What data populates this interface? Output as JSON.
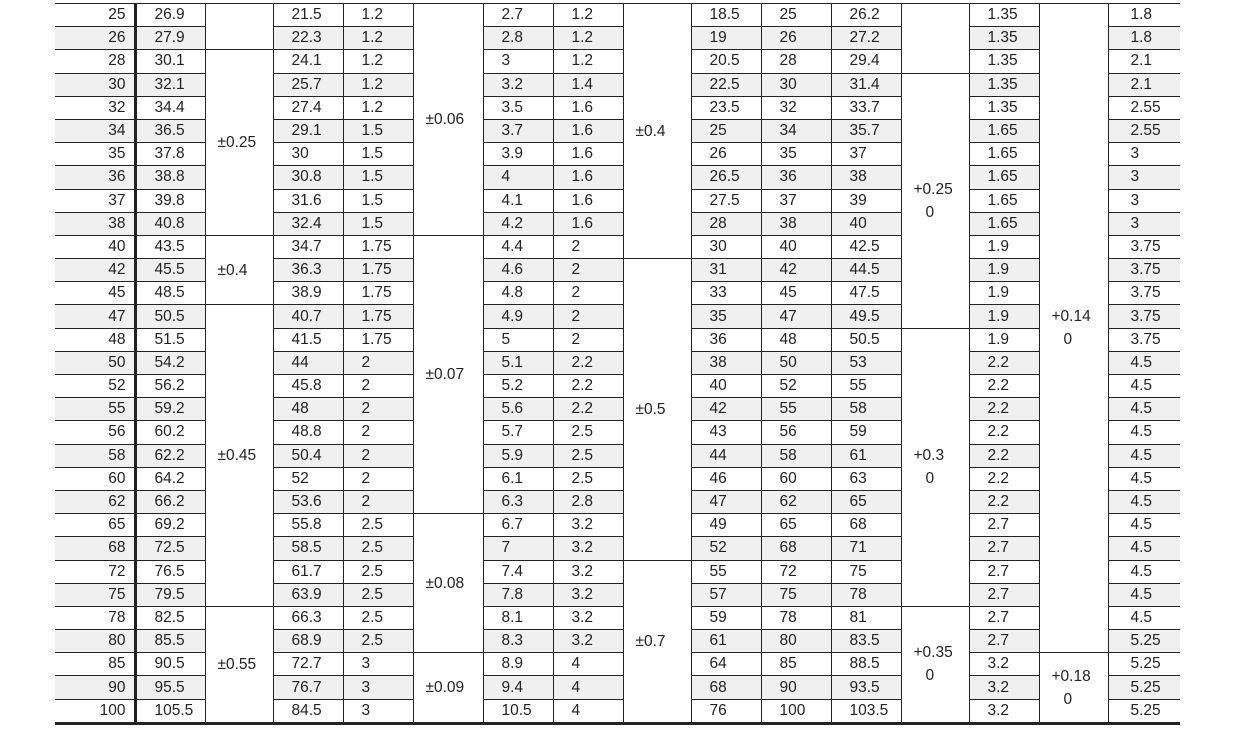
{
  "rows": [
    [
      "25",
      "26.9",
      "21.5",
      "1.2",
      "2.7",
      "1.2",
      "18.5",
      "25",
      "26.2",
      "1.35",
      "1.8"
    ],
    [
      "26",
      "27.9",
      "22.3",
      "1.2",
      "2.8",
      "1.2",
      "19",
      "26",
      "27.2",
      "1.35",
      "1.8"
    ],
    [
      "28",
      "30.1",
      "24.1",
      "1.2",
      "3",
      "1.2",
      "20.5",
      "28",
      "29.4",
      "1.35",
      "2.1"
    ],
    [
      "30",
      "32.1",
      "25.7",
      "1.2",
      "3.2",
      "1.4",
      "22.5",
      "30",
      "31.4",
      "1.35",
      "2.1"
    ],
    [
      "32",
      "34.4",
      "27.4",
      "1.2",
      "3.5",
      "1.6",
      "23.5",
      "32",
      "33.7",
      "1.35",
      "2.55"
    ],
    [
      "34",
      "36.5",
      "29.1",
      "1.5",
      "3.7",
      "1.6",
      "25",
      "34",
      "35.7",
      "1.65",
      "2.55"
    ],
    [
      "35",
      "37.8",
      "30",
      "1.5",
      "3.9",
      "1.6",
      "26",
      "35",
      "37",
      "1.65",
      "3"
    ],
    [
      "36",
      "38.8",
      "30.8",
      "1.5",
      "4",
      "1.6",
      "26.5",
      "36",
      "38",
      "1.65",
      "3"
    ],
    [
      "37",
      "39.8",
      "31.6",
      "1.5",
      "4.1",
      "1.6",
      "27.5",
      "37",
      "39",
      "1.65",
      "3"
    ],
    [
      "38",
      "40.8",
      "32.4",
      "1.5",
      "4.2",
      "1.6",
      "28",
      "38",
      "40",
      "1.65",
      "3"
    ],
    [
      "40",
      "43.5",
      "34.7",
      "1.75",
      "4.4",
      "2",
      "30",
      "40",
      "42.5",
      "1.9",
      "3.75"
    ],
    [
      "42",
      "45.5",
      "36.3",
      "1.75",
      "4.6",
      "2",
      "31",
      "42",
      "44.5",
      "1.9",
      "3.75"
    ],
    [
      "45",
      "48.5",
      "38.9",
      "1.75",
      "4.8",
      "2",
      "33",
      "45",
      "47.5",
      "1.9",
      "3.75"
    ],
    [
      "47",
      "50.5",
      "40.7",
      "1.75",
      "4.9",
      "2",
      "35",
      "47",
      "49.5",
      "1.9",
      "3.75"
    ],
    [
      "48",
      "51.5",
      "41.5",
      "1.75",
      "5",
      "2",
      "36",
      "48",
      "50.5",
      "1.9",
      "3.75"
    ],
    [
      "50",
      "54.2",
      "44",
      "2",
      "5.1",
      "2.2",
      "38",
      "50",
      "53",
      "2.2",
      "4.5"
    ],
    [
      "52",
      "56.2",
      "45.8",
      "2",
      "5.2",
      "2.2",
      "40",
      "52",
      "55",
      "2.2",
      "4.5"
    ],
    [
      "55",
      "59.2",
      "48",
      "2",
      "5.6",
      "2.2",
      "42",
      "55",
      "58",
      "2.2",
      "4.5"
    ],
    [
      "56",
      "60.2",
      "48.8",
      "2",
      "5.7",
      "2.5",
      "43",
      "56",
      "59",
      "2.2",
      "4.5"
    ],
    [
      "58",
      "62.2",
      "50.4",
      "2",
      "5.9",
      "2.5",
      "44",
      "58",
      "61",
      "2.2",
      "4.5"
    ],
    [
      "60",
      "64.2",
      "52",
      "2",
      "6.1",
      "2.5",
      "46",
      "60",
      "63",
      "2.2",
      "4.5"
    ],
    [
      "62",
      "66.2",
      "53.6",
      "2",
      "6.3",
      "2.8",
      "47",
      "62",
      "65",
      "2.2",
      "4.5"
    ],
    [
      "65",
      "69.2",
      "55.8",
      "2.5",
      "6.7",
      "3.2",
      "49",
      "65",
      "68",
      "2.7",
      "4.5"
    ],
    [
      "68",
      "72.5",
      "58.5",
      "2.5",
      "7",
      "3.2",
      "52",
      "68",
      "71",
      "2.7",
      "4.5"
    ],
    [
      "72",
      "76.5",
      "61.7",
      "2.5",
      "7.4",
      "3.2",
      "55",
      "72",
      "75",
      "2.7",
      "4.5"
    ],
    [
      "75",
      "79.5",
      "63.9",
      "2.5",
      "7.8",
      "3.2",
      "57",
      "75",
      "78",
      "2.7",
      "4.5"
    ],
    [
      "78",
      "82.5",
      "66.3",
      "2.5",
      "8.1",
      "3.2",
      "59",
      "78",
      "81",
      "2.7",
      "4.5"
    ],
    [
      "80",
      "85.5",
      "68.9",
      "2.5",
      "8.3",
      "3.2",
      "61",
      "80",
      "83.5",
      "2.7",
      "5.25"
    ],
    [
      "85",
      "90.5",
      "72.7",
      "3",
      "8.9",
      "4",
      "64",
      "85",
      "88.5",
      "3.2",
      "5.25"
    ],
    [
      "90",
      "95.5",
      "76.7",
      "3",
      "9.4",
      "4",
      "68",
      "90",
      "93.5",
      "3.2",
      "5.25"
    ],
    [
      "100",
      "105.5",
      "84.5",
      "3",
      "10.5",
      "4",
      "76",
      "100",
      "103.5",
      "3.2",
      "5.25"
    ]
  ],
  "tolerance_columns": [
    {
      "after_col": 1,
      "groups": [
        {
          "start": 0,
          "span": 2,
          "upper": "",
          "lower": ""
        },
        {
          "start": 2,
          "span": 8,
          "upper": "±0.25",
          "lower": ""
        },
        {
          "start": 10,
          "span": 3,
          "upper": "±0.4",
          "lower": ""
        },
        {
          "start": 13,
          "span": 13,
          "upper": "±0.45",
          "lower": ""
        },
        {
          "start": 26,
          "span": 5,
          "upper": "±0.55",
          "lower": ""
        }
      ]
    },
    {
      "after_col": 3,
      "groups": [
        {
          "start": 0,
          "span": 10,
          "upper": "±0.06",
          "lower": ""
        },
        {
          "start": 10,
          "span": 12,
          "upper": "±0.07",
          "lower": ""
        },
        {
          "start": 22,
          "span": 6,
          "upper": "±0.08",
          "lower": ""
        },
        {
          "start": 28,
          "span": 3,
          "upper": "±0.09",
          "lower": ""
        }
      ]
    },
    {
      "after_col": 5,
      "groups": [
        {
          "start": 0,
          "span": 11,
          "upper": "±0.4",
          "lower": ""
        },
        {
          "start": 11,
          "span": 13,
          "upper": "±0.5",
          "lower": ""
        },
        {
          "start": 24,
          "span": 7,
          "upper": "±0.7",
          "lower": ""
        }
      ]
    },
    {
      "after_col": 8,
      "groups": [
        {
          "start": 0,
          "span": 3,
          "upper": "",
          "lower": ""
        },
        {
          "start": 3,
          "span": 11,
          "upper": "+0.25",
          "lower": "0"
        },
        {
          "start": 14,
          "span": 12,
          "upper": "+0.3",
          "lower": "0"
        },
        {
          "start": 26,
          "span": 5,
          "upper": "+0.35",
          "lower": "0"
        }
      ]
    },
    {
      "after_col": 9,
      "groups": [
        {
          "start": 0,
          "span": 28,
          "upper": "+0.14",
          "lower": "0"
        },
        {
          "start": 28,
          "span": 3,
          "upper": "+0.18",
          "lower": "0"
        }
      ]
    }
  ],
  "colors": {
    "row_shade": "#f0f0f0",
    "rule": "#222222"
  }
}
